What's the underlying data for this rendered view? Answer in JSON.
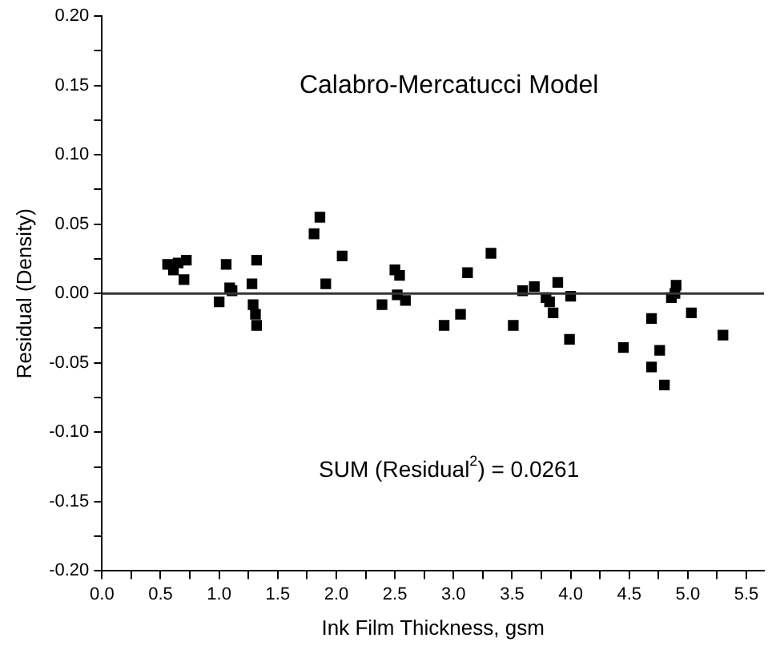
{
  "chart_data": {
    "type": "scatter",
    "title": "Calabro-Mercatucci Model",
    "xlabel": "Ink Film Thickness, gsm",
    "ylabel": "Residual (Density)",
    "annotations": [
      "SUM (Residual$^{2}$) = 0.0261"
    ],
    "x": [
      0.56,
      0.61,
      0.65,
      0.72,
      0.7,
      1.06,
      1.0,
      1.09,
      1.11,
      1.28,
      1.32,
      1.29,
      1.31,
      1.32,
      1.81,
      1.86,
      1.91,
      2.05,
      2.39,
      2.5,
      2.54,
      2.52,
      2.59,
      2.92,
      3.06,
      3.12,
      3.32,
      3.51,
      3.59,
      3.69,
      3.79,
      3.82,
      3.85,
      3.89,
      4.0,
      3.99,
      4.45,
      4.69,
      4.69,
      4.76,
      4.8,
      4.86,
      4.89,
      4.9,
      5.03,
      5.3
    ],
    "series": [
      {
        "color": "#000000",
        "values": [
          0.021,
          0.017,
          0.022,
          0.024,
          0.01,
          0.021,
          -0.006,
          0.004,
          0.002,
          0.007,
          0.024,
          -0.008,
          -0.015,
          -0.023,
          0.043,
          0.055,
          0.007,
          0.027,
          -0.008,
          0.017,
          0.013,
          -0.001,
          -0.005,
          -0.023,
          -0.015,
          0.015,
          0.029,
          -0.023,
          0.002,
          0.005,
          -0.003,
          -0.006,
          -0.014,
          0.008,
          -0.002,
          -0.033,
          -0.039,
          -0.018,
          -0.053,
          -0.041,
          -0.066,
          -0.003,
          0.0,
          0.006,
          -0.014,
          -0.03
        ]
      }
    ],
    "marker": "square",
    "grid": false,
    "legend": false,
    "xlim": [
      0,
      5.65
    ],
    "xticks": [
      {
        "value": 0,
        "label": "0.0"
      },
      {
        "value": 0.25,
        "label": null
      },
      {
        "value": 0.5,
        "label": "0.5"
      },
      {
        "value": 0.75,
        "label": null
      },
      {
        "value": 1,
        "label": "1.0"
      },
      {
        "value": 1.25,
        "label": null
      },
      {
        "value": 1.5,
        "label": "1.5"
      },
      {
        "value": 1.75,
        "label": null
      },
      {
        "value": 2,
        "label": "2.0"
      },
      {
        "value": 2.25,
        "label": null
      },
      {
        "value": 2.5,
        "label": "2.5"
      },
      {
        "value": 2.75,
        "label": null
      },
      {
        "value": 3,
        "label": "3.0"
      },
      {
        "value": 3.25,
        "label": null
      },
      {
        "value": 3.5,
        "label": "3.5"
      },
      {
        "value": 3.75,
        "label": null
      },
      {
        "value": 4,
        "label": "4.0"
      },
      {
        "value": 4.25,
        "label": null
      },
      {
        "value": 4.5,
        "label": "4.5"
      },
      {
        "value": 4.75,
        "label": null
      },
      {
        "value": 5,
        "label": "5.0"
      },
      {
        "value": 5.25,
        "label": null
      },
      {
        "value": 5.5,
        "label": "5.5"
      }
    ],
    "ylim": [
      -0.2,
      0.2
    ],
    "yticks": [
      {
        "value": -0.2,
        "label": "-0.20"
      },
      {
        "value": -0.175,
        "label": null
      },
      {
        "value": -0.15,
        "label": "-0.15"
      },
      {
        "value": -0.125,
        "label": null
      },
      {
        "value": -0.1,
        "label": "-0.10"
      },
      {
        "value": -0.075,
        "label": null
      },
      {
        "value": -0.05,
        "label": "-0.05"
      },
      {
        "value": -0.025,
        "label": null
      },
      {
        "value": 0,
        "label": "0.00"
      },
      {
        "value": 0.025,
        "label": null
      },
      {
        "value": 0.05,
        "label": "0.05"
      },
      {
        "value": 0.075,
        "label": null
      },
      {
        "value": 0.1,
        "label": "0.10"
      },
      {
        "value": 0.125,
        "label": null
      },
      {
        "value": 0.15,
        "label": "0.15"
      },
      {
        "value": 0.175,
        "label": null
      },
      {
        "value": 0.2,
        "label": "0.20"
      }
    ],
    "ref_lines": [
      {
        "axis": "y",
        "value": 0,
        "color": "#333333"
      }
    ]
  }
}
